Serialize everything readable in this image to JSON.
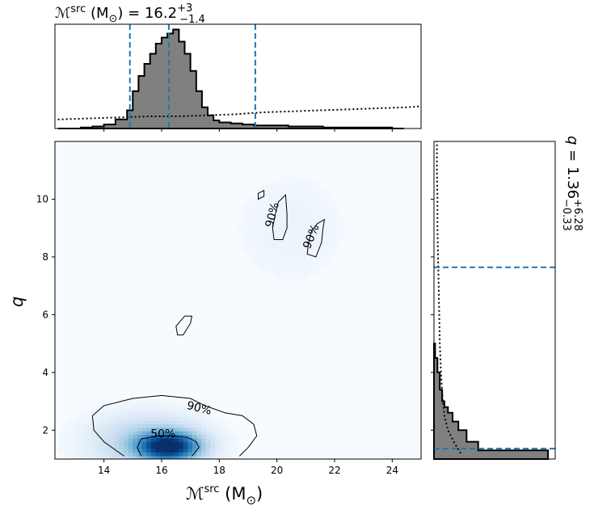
{
  "chart_data": {
    "type": "corner",
    "colors": {
      "median_line": "#1f77b4",
      "hist_fill": "#808080",
      "hist_edge": "#000000",
      "density_cmap": "Blues"
    },
    "top_title": {
      "prefix": "ℳ",
      "sup": "src",
      "unit": " (M",
      "sub_unit": "⊙",
      "close": ") = 16.2",
      "upper": "+3",
      "lower": "−1.4"
    },
    "right_title": {
      "prefix": "q = 1.36",
      "upper": "+6.28",
      "lower": "−0.33"
    },
    "xlabel": {
      "main": "ℳ",
      "sup": "src",
      "unit": " (M",
      "sub_unit": "⊙",
      "close": ")"
    },
    "ylabel": "q",
    "x_range": [
      12.3,
      25.0
    ],
    "y_range": [
      1.0,
      12.0
    ],
    "x_ticks": [
      14,
      16,
      18,
      20,
      22,
      24
    ],
    "y_ticks": [
      2,
      4,
      6,
      8,
      10
    ],
    "x_ticklabels": [
      "14",
      "16",
      "18",
      "20",
      "22",
      "24"
    ],
    "y_ticklabels": [
      "2",
      "4",
      "6",
      "8",
      "10"
    ],
    "top_quantiles": [
      14.9,
      16.25,
      19.25
    ],
    "right_quantiles": [
      1.36,
      7.64
    ],
    "top_hist": {
      "bin_edges": [
        12.4,
        12.8,
        13.2,
        13.6,
        14.0,
        14.4,
        14.8,
        15.0,
        15.2,
        15.4,
        15.6,
        15.8,
        16.0,
        16.2,
        16.4,
        16.6,
        16.8,
        17.0,
        17.2,
        17.4,
        17.6,
        17.8,
        18.0,
        18.4,
        18.8,
        19.2,
        19.6,
        20.0,
        20.4,
        20.8,
        21.2,
        21.6,
        22.0,
        22.4,
        22.8,
        23.2,
        23.6,
        24.0,
        24.4
      ],
      "density": [
        0,
        0,
        0.01,
        0.02,
        0.04,
        0.09,
        0.18,
        0.37,
        0.52,
        0.64,
        0.74,
        0.84,
        0.9,
        0.94,
        0.98,
        0.86,
        0.74,
        0.57,
        0.37,
        0.21,
        0.13,
        0.08,
        0.06,
        0.05,
        0.04,
        0.03,
        0.03,
        0.03,
        0.02,
        0.02,
        0.02,
        0.01,
        0.01,
        0.01,
        0.01,
        0.01,
        0.01,
        0
      ]
    },
    "top_prior": {
      "x": [
        12.4,
        13.5,
        14.5,
        15.5,
        16.5,
        17.5,
        18.5,
        19.5,
        20.5,
        21.5,
        22.5,
        23.5,
        24.5,
        25.0
      ],
      "y": [
        0.09,
        0.1,
        0.11,
        0.12,
        0.12,
        0.13,
        0.14,
        0.16,
        0.17,
        0.18,
        0.19,
        0.2,
        0.21,
        0.22
      ]
    },
    "right_hist": {
      "bin_edges": [
        1.0,
        1.3,
        1.6,
        2.0,
        2.3,
        2.6,
        2.8,
        3.0,
        3.4,
        4.0,
        4.5,
        5.0
      ],
      "density": [
        0.98,
        0.38,
        0.28,
        0.21,
        0.16,
        0.12,
        0.09,
        0.07,
        0.05,
        0.03,
        0.01
      ]
    },
    "right_prior": {
      "y": [
        1.2,
        1.6,
        2.0,
        2.5,
        3.0,
        4.0,
        5.0,
        6.0,
        7.0,
        8.0,
        9.0,
        10.0,
        11.0,
        12.0
      ],
      "x": [
        0.23,
        0.17,
        0.12,
        0.09,
        0.075,
        0.06,
        0.05,
        0.045,
        0.04,
        0.035,
        0.03,
        0.03,
        0.025,
        0.025
      ]
    },
    "density_peaks": [
      {
        "mx": 16.25,
        "q": 1.45,
        "sx": 0.7,
        "sy": 0.33,
        "w": 1.0
      },
      {
        "mx": 15.5,
        "q": 1.6,
        "sx": 1.2,
        "sy": 0.6,
        "w": 0.25
      },
      {
        "mx": 20.5,
        "q": 9.0,
        "sx": 1.2,
        "sy": 1.2,
        "w": 0.03
      }
    ],
    "contours": [
      {
        "label": "90%",
        "label_x": 17.3,
        "label_y": 2.75,
        "label_angle": 14,
        "points": [
          [
            14.7,
            1.1
          ],
          [
            14.0,
            1.6
          ],
          [
            13.65,
            2.0
          ],
          [
            13.6,
            2.5
          ],
          [
            14.0,
            2.85
          ],
          [
            15.0,
            3.1
          ],
          [
            16.0,
            3.2
          ],
          [
            17.0,
            3.1
          ],
          [
            17.5,
            2.85
          ],
          [
            18.2,
            2.6
          ],
          [
            18.8,
            2.5
          ],
          [
            19.2,
            2.2
          ],
          [
            19.3,
            1.8
          ],
          [
            19.0,
            1.4
          ],
          [
            18.7,
            1.1
          ]
        ]
      },
      {
        "label": "50%",
        "label_x": 16.05,
        "label_y": 1.85,
        "label_angle": 0,
        "points": [
          [
            15.3,
            1.1
          ],
          [
            15.15,
            1.4
          ],
          [
            15.3,
            1.7
          ],
          [
            15.9,
            1.8
          ],
          [
            16.3,
            1.8
          ],
          [
            16.9,
            1.75
          ],
          [
            17.2,
            1.6
          ],
          [
            17.3,
            1.4
          ],
          [
            17.05,
            1.1
          ]
        ]
      },
      {
        "closed": true,
        "points": [
          [
            16.55,
            5.3
          ],
          [
            16.5,
            5.6
          ],
          [
            16.8,
            5.95
          ],
          [
            17.05,
            5.95
          ],
          [
            17.0,
            5.7
          ],
          [
            16.75,
            5.3
          ]
        ]
      },
      {
        "closed": true,
        "points": [
          [
            19.35,
            10.0
          ],
          [
            19.35,
            10.2
          ],
          [
            19.55,
            10.3
          ],
          [
            19.55,
            10.1
          ]
        ]
      },
      {
        "label": "90%",
        "label_x": 19.85,
        "label_y": 9.45,
        "label_angle": -76,
        "points": [
          [
            20.3,
            10.15
          ],
          [
            20.05,
            9.9
          ],
          [
            19.95,
            9.5
          ],
          [
            19.85,
            9.0
          ],
          [
            19.9,
            8.6
          ],
          [
            20.2,
            8.6
          ],
          [
            20.35,
            9.0
          ],
          [
            20.35,
            9.5
          ],
          [
            20.3,
            10.15
          ]
        ],
        "closed": true
      },
      {
        "label": "90%",
        "label_x": 21.2,
        "label_y": 8.7,
        "label_angle": -68,
        "points": [
          [
            21.65,
            9.3
          ],
          [
            21.4,
            9.15
          ],
          [
            21.2,
            8.9
          ],
          [
            21.1,
            8.5
          ],
          [
            21.05,
            8.1
          ],
          [
            21.35,
            8.0
          ],
          [
            21.55,
            8.5
          ],
          [
            21.6,
            9.0
          ],
          [
            21.65,
            9.3
          ]
        ],
        "closed": true
      }
    ]
  }
}
